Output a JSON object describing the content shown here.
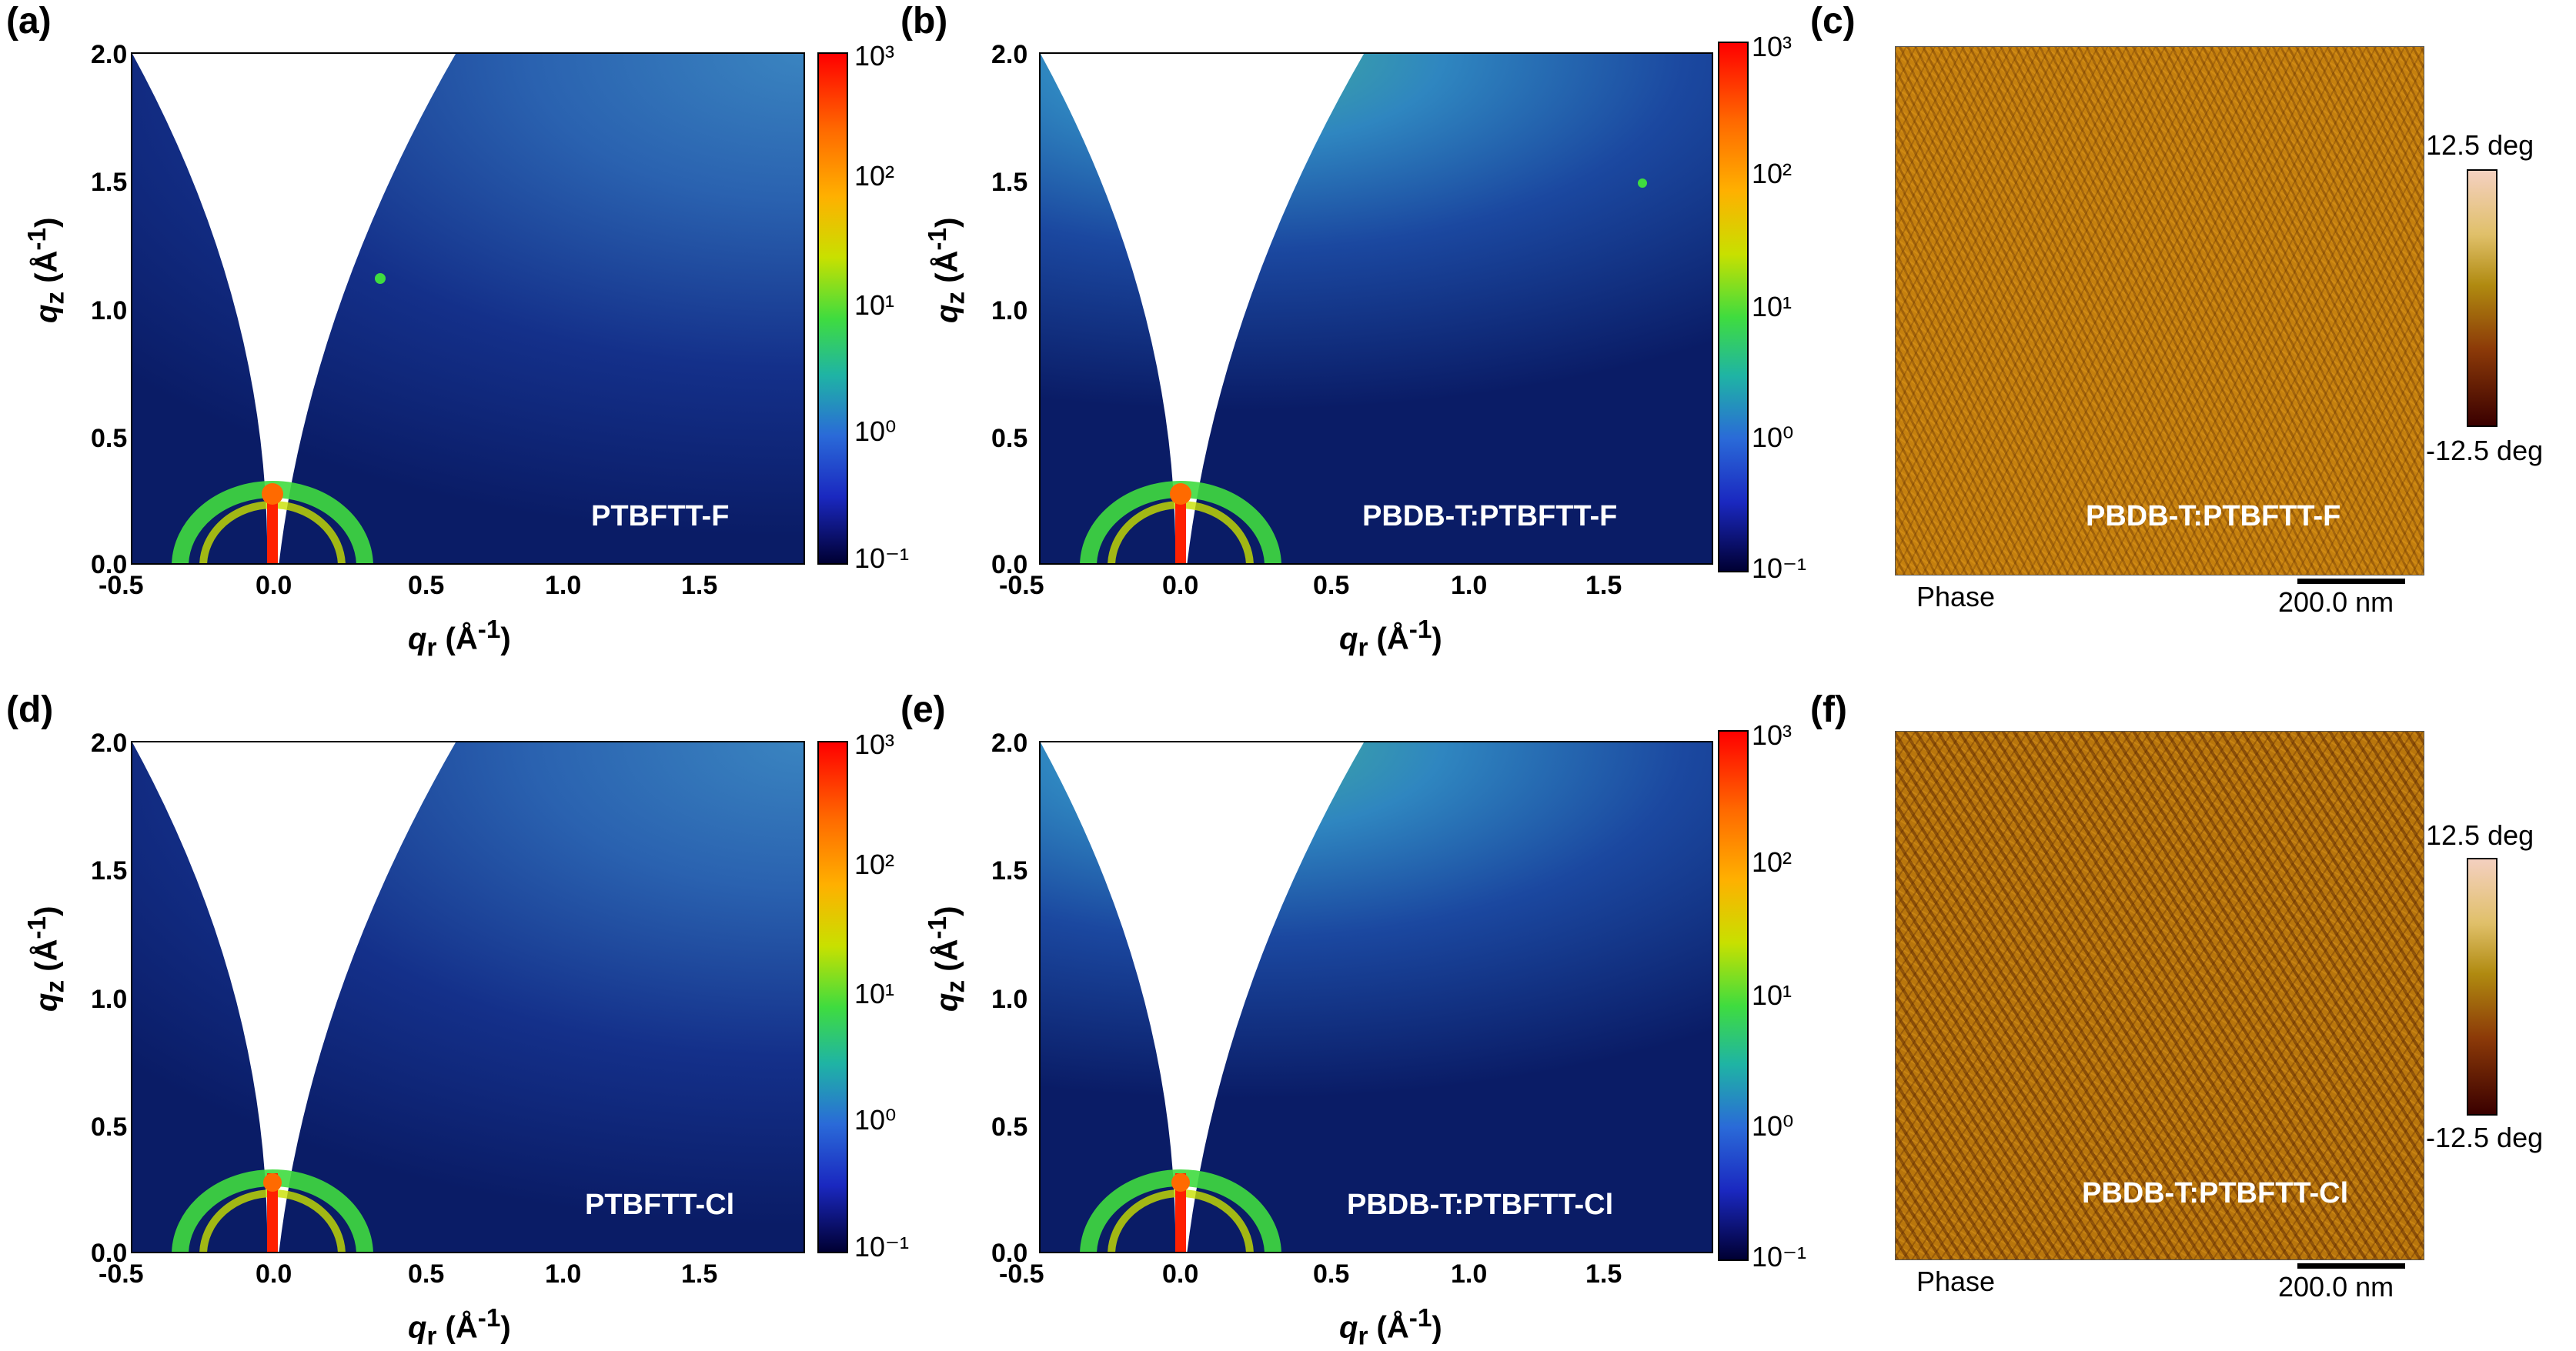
{
  "panels": {
    "a": {
      "label": "(a)",
      "sample": "PTBFTT-F"
    },
    "b": {
      "label": "(b)",
      "sample": "PBDB-T:PTBFTT-F"
    },
    "c": {
      "label": "(c)",
      "sample": "PBDB-T:PTBFTT-F"
    },
    "d": {
      "label": "(d)",
      "sample": "PTBFTT-Cl"
    },
    "e": {
      "label": "(e)",
      "sample": "PBDB-T:PTBFTT-Cl"
    },
    "f": {
      "label": "(f)",
      "sample": "PBDB-T:PTBFTT-Cl"
    }
  },
  "giwaxs": {
    "ylabel": "qz (Å-1)",
    "xlabel": "qr (Å-1)",
    "yticks": [
      "0.0",
      "0.5",
      "1.0",
      "1.5",
      "2.0"
    ],
    "xticks": [
      "-0.5",
      "0.0",
      "0.5",
      "1.0",
      "1.5"
    ],
    "colorbar_ticks": [
      "10³",
      "10²",
      "10¹",
      "10⁰",
      "10⁻¹"
    ]
  },
  "afm": {
    "channel": "Phase",
    "scalebar": "200.0 nm",
    "cbar_max": "12.5 deg",
    "cbar_min": "-12.5 deg"
  },
  "chart_data": [
    {
      "type": "heatmap",
      "title": "PTBFTT-F",
      "xlabel": "qr (Å-1)",
      "ylabel": "qz (Å-1)",
      "xlim": [
        -0.5,
        1.9
      ],
      "ylim": [
        0,
        2.0
      ],
      "color_scale": "log",
      "clim": [
        0.1,
        1000
      ]
    },
    {
      "type": "heatmap",
      "title": "PBDB-T:PTBFTT-F",
      "xlabel": "qr (Å-1)",
      "ylabel": "qz (Å-1)",
      "xlim": [
        -0.5,
        1.9
      ],
      "ylim": [
        0,
        2.0
      ],
      "color_scale": "log",
      "clim": [
        0.1,
        1000
      ]
    },
    {
      "type": "heatmap",
      "title": "PTBFTT-Cl",
      "xlabel": "qr (Å-1)",
      "ylabel": "qz (Å-1)",
      "xlim": [
        -0.5,
        1.9
      ],
      "ylim": [
        0,
        2.0
      ],
      "color_scale": "log",
      "clim": [
        0.1,
        1000
      ]
    },
    {
      "type": "heatmap",
      "title": "PBDB-T:PTBFTT-Cl",
      "xlabel": "qr (Å-1)",
      "ylabel": "qz (Å-1)",
      "xlim": [
        -0.5,
        1.9
      ],
      "ylim": [
        0,
        2.0
      ],
      "color_scale": "log",
      "clim": [
        0.1,
        1000
      ]
    }
  ]
}
